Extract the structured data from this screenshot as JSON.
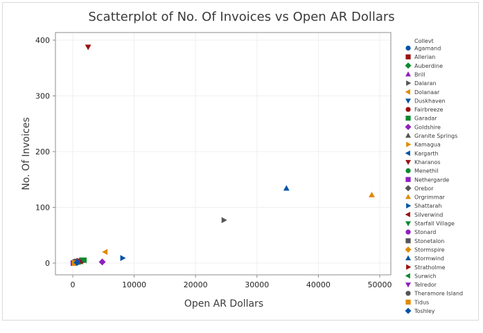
{
  "chart_data": {
    "type": "scatter",
    "title": "Scatterplot of No. Of Invoices vs Open AR Dollars",
    "xlabel": "Open AR Dollars",
    "ylabel": "No. Of Invoices",
    "xlim": [
      -2800,
      52000
    ],
    "ylim": [
      -22,
      414
    ],
    "xticks": [
      0,
      10000,
      20000,
      30000,
      40000,
      50000
    ],
    "yticks": [
      0,
      100,
      200,
      300,
      400
    ],
    "grid": true,
    "legend_title": "Collevt",
    "legend_position": "right",
    "series": [
      {
        "name": "Agamand",
        "marker": "circle",
        "color": "#0054a6",
        "points": [
          [
            400,
            1
          ]
        ]
      },
      {
        "name": "Allerian",
        "marker": "square",
        "color": "#9b1111",
        "points": [
          [
            600,
            2
          ]
        ]
      },
      {
        "name": "Auberdine",
        "marker": "diamond",
        "color": "#0a8a2e",
        "points": [
          [
            1200,
            4
          ]
        ]
      },
      {
        "name": "Brill",
        "marker": "triangle-up",
        "color": "#8f1fbf",
        "points": [
          [
            300,
            1
          ]
        ]
      },
      {
        "name": "Dalaran",
        "marker": "triangle-right",
        "color": "#555555",
        "points": [
          [
            24600,
            77
          ]
        ]
      },
      {
        "name": "Dolanaar",
        "marker": "triangle-left",
        "color": "#e08a00",
        "points": [
          [
            5300,
            20
          ]
        ]
      },
      {
        "name": "Duskhaven",
        "marker": "triangle-down",
        "color": "#0054a6",
        "points": [
          [
            700,
            2
          ]
        ]
      },
      {
        "name": "Fairbreeze",
        "marker": "circle",
        "color": "#9b1111",
        "points": [
          [
            900,
            3
          ]
        ]
      },
      {
        "name": "Garadar",
        "marker": "square",
        "color": "#0a8a2e",
        "points": [
          [
            1500,
            5
          ]
        ]
      },
      {
        "name": "Goldshire",
        "marker": "diamond",
        "color": "#8f1fbf",
        "points": [
          [
            4800,
            2
          ]
        ]
      },
      {
        "name": "Granite Springs",
        "marker": "triangle-up",
        "color": "#555555",
        "points": [
          [
            500,
            1
          ]
        ]
      },
      {
        "name": "Kamagua",
        "marker": "triangle-right",
        "color": "#e08a00",
        "points": [
          [
            200,
            0
          ]
        ]
      },
      {
        "name": "Kargarth",
        "marker": "triangle-left",
        "color": "#0054a6",
        "points": [
          [
            800,
            3
          ]
        ]
      },
      {
        "name": "Kharanos",
        "marker": "triangle-down",
        "color": "#9b1111",
        "points": [
          [
            2500,
            388
          ]
        ]
      },
      {
        "name": "Menethil",
        "marker": "circle",
        "color": "#0a8a2e",
        "points": [
          [
            1100,
            2
          ]
        ]
      },
      {
        "name": "Nethergarde",
        "marker": "square",
        "color": "#8f1fbf",
        "points": [
          [
            100,
            0
          ]
        ]
      },
      {
        "name": "Orebor",
        "marker": "diamond",
        "color": "#555555",
        "points": [
          [
            300,
            2
          ]
        ]
      },
      {
        "name": "Orgrimmar",
        "marker": "triangle-up",
        "color": "#e08a00",
        "points": [
          [
            48700,
            122
          ]
        ]
      },
      {
        "name": "Shattarah",
        "marker": "triangle-right",
        "color": "#0054a6",
        "points": [
          [
            8100,
            9
          ]
        ]
      },
      {
        "name": "Silverwind",
        "marker": "triangle-left",
        "color": "#9b1111",
        "points": [
          [
            1300,
            3
          ]
        ]
      },
      {
        "name": "Starfall Village",
        "marker": "triangle-down",
        "color": "#0a8a2e",
        "points": [
          [
            1700,
            6
          ]
        ]
      },
      {
        "name": "Stonard",
        "marker": "circle",
        "color": "#8f1fbf",
        "points": [
          [
            200,
            1
          ]
        ]
      },
      {
        "name": "Stonetalon",
        "marker": "square",
        "color": "#555555",
        "points": [
          [
            400,
            2
          ]
        ]
      },
      {
        "name": "Stormspire",
        "marker": "diamond",
        "color": "#e08a00",
        "points": [
          [
            600,
            1
          ]
        ]
      },
      {
        "name": "Stormwind",
        "marker": "triangle-up",
        "color": "#0054a6",
        "points": [
          [
            34800,
            134
          ]
        ]
      },
      {
        "name": "Stratholme",
        "marker": "triangle-right",
        "color": "#9b1111",
        "points": [
          [
            1000,
            4
          ]
        ]
      },
      {
        "name": "Surwich",
        "marker": "triangle-left",
        "color": "#0a8a2e",
        "points": [
          [
            1900,
            5
          ]
        ]
      },
      {
        "name": "Telredor",
        "marker": "triangle-down",
        "color": "#8f1fbf",
        "points": [
          [
            800,
            2
          ]
        ]
      },
      {
        "name": "Theramore Island",
        "marker": "circle",
        "color": "#555555",
        "points": [
          [
            500,
            3
          ]
        ]
      },
      {
        "name": "Tidus",
        "marker": "square",
        "color": "#e08a00",
        "points": [
          [
            300,
            0
          ]
        ]
      },
      {
        "name": "Toshley",
        "marker": "diamond",
        "color": "#0054a6",
        "points": [
          [
            700,
            1
          ]
        ]
      }
    ]
  }
}
